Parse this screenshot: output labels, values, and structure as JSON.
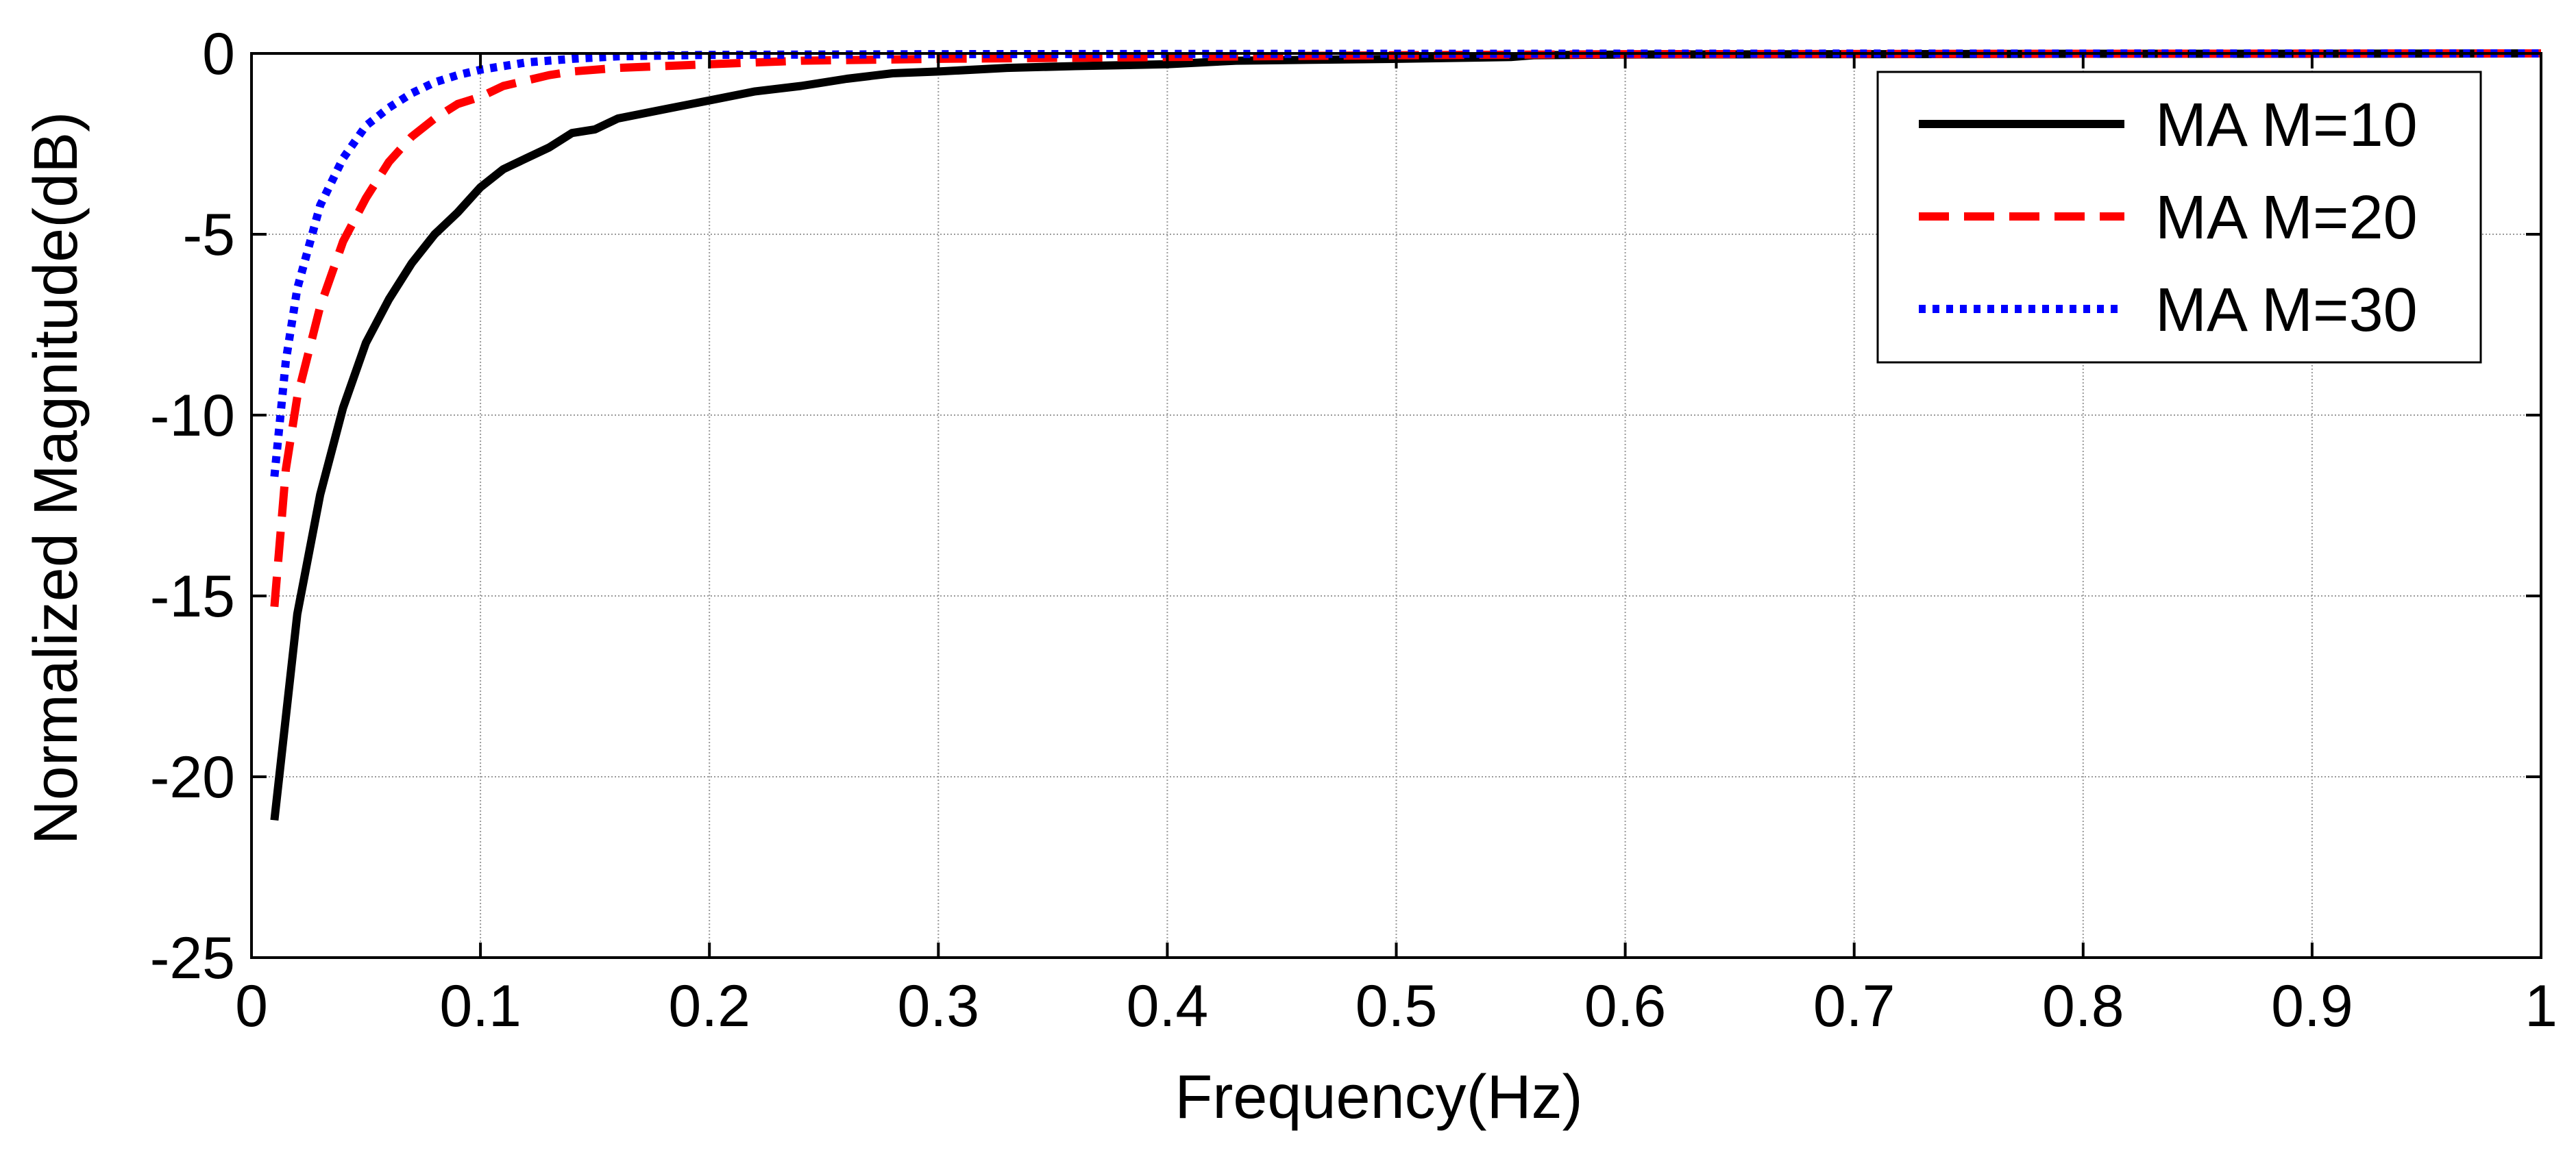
{
  "chart_data": {
    "type": "line",
    "title": "",
    "xlabel": "Frequency(Hz)",
    "ylabel": "Normalized Magnitude(dB)",
    "xlim": [
      0,
      1
    ],
    "ylim": [
      -25,
      0
    ],
    "xticks": [
      0,
      0.1,
      0.2,
      0.3,
      0.4,
      0.5,
      0.6,
      0.7,
      0.8,
      0.9,
      1
    ],
    "xtick_labels": [
      "0",
      "0.1",
      "0.2",
      "0.3",
      "0.4",
      "0.5",
      "0.6",
      "0.7",
      "0.8",
      "0.9",
      "1"
    ],
    "yticks": [
      0,
      -5,
      -10,
      -15,
      -20,
      -25
    ],
    "ytick_labels": [
      "0",
      "-5",
      "-10",
      "-15",
      "-20",
      "-25"
    ],
    "grid": true,
    "legend_position": "top-right",
    "series": [
      {
        "name": "MA M=10",
        "color": "#000000",
        "style": "solid",
        "x": [
          0.01,
          0.02,
          0.03,
          0.04,
          0.05,
          0.06,
          0.07,
          0.08,
          0.09,
          0.1,
          0.11,
          0.12,
          0.13,
          0.14,
          0.15,
          0.16,
          0.18,
          0.2,
          0.22,
          0.24,
          0.26,
          0.28,
          0.3,
          0.33,
          0.36,
          0.4,
          0.43,
          0.5,
          0.55,
          0.56,
          0.6,
          0.7,
          0.8,
          0.9,
          1.0
        ],
        "y": [
          -21.2,
          -15.5,
          -12.2,
          -9.8,
          -8.0,
          -6.8,
          -5.8,
          -5.0,
          -4.4,
          -3.7,
          -3.2,
          -2.9,
          -2.6,
          -2.2,
          -2.1,
          -1.8,
          -1.55,
          -1.3,
          -1.05,
          -0.9,
          -0.7,
          -0.55,
          -0.5,
          -0.4,
          -0.35,
          -0.3,
          -0.2,
          -0.15,
          -0.1,
          -0.05,
          -0.03,
          -0.02,
          -0.01,
          -0.01,
          0.0
        ]
      },
      {
        "name": "MA M=20",
        "color": "#ff0000",
        "style": "dashed",
        "x": [
          0.01,
          0.015,
          0.02,
          0.03,
          0.04,
          0.05,
          0.06,
          0.07,
          0.08,
          0.09,
          0.1,
          0.11,
          0.12,
          0.13,
          0.14,
          0.16,
          0.18,
          0.2,
          0.24,
          0.3,
          0.4,
          0.5,
          0.6,
          0.8,
          1.0
        ],
        "y": [
          -15.3,
          -11.5,
          -9.5,
          -7.0,
          -5.2,
          -4.0,
          -3.0,
          -2.3,
          -1.8,
          -1.4,
          -1.2,
          -0.9,
          -0.75,
          -0.6,
          -0.5,
          -0.4,
          -0.35,
          -0.3,
          -0.2,
          -0.15,
          -0.1,
          -0.05,
          -0.02,
          -0.01,
          0.0
        ]
      },
      {
        "name": "MA M=30",
        "color": "#0000ff",
        "style": "dotted",
        "x": [
          0.01,
          0.015,
          0.02,
          0.03,
          0.04,
          0.05,
          0.06,
          0.07,
          0.08,
          0.09,
          0.1,
          0.12,
          0.14,
          0.16,
          0.2,
          0.3,
          0.5,
          1.0
        ],
        "y": [
          -11.7,
          -8.5,
          -6.5,
          -4.2,
          -2.9,
          -2.0,
          -1.5,
          -1.1,
          -0.8,
          -0.6,
          -0.45,
          -0.25,
          -0.15,
          -0.08,
          -0.04,
          -0.02,
          -0.01,
          0.0
        ]
      }
    ]
  }
}
